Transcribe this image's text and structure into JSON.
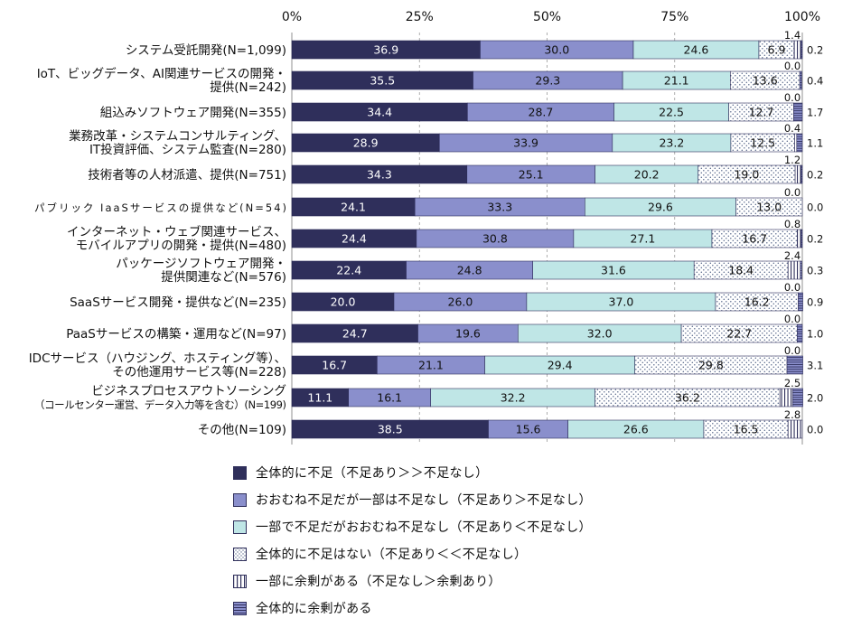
{
  "chart_data": {
    "type": "bar",
    "orientation": "horizontal",
    "stacked": true,
    "x_ticks": [
      "0%",
      "25%",
      "50%",
      "75%",
      "100%"
    ],
    "xlim": [
      0,
      100
    ],
    "grid": "vertical dashed",
    "legend_position": "bottom",
    "legend": [
      "全体的に不足（不足あり＞＞不足なし）",
      "おおむね不足だが一部は不足なし（不足あり＞不足なし）",
      "一部で不足だがおおむね不足なし（不足あり＜不足なし）",
      "全体的に不足はない（不足あり＜＜不足なし）",
      "一部に余剰がある（不足なし＞余剰あり）",
      "全体的に余剰がある"
    ],
    "categories": [
      [
        "システム受託開発(N=1,099)"
      ],
      [
        "IoT、ビッグデータ、AI関連サービスの開発・",
        "提供(N=242)"
      ],
      [
        "組込みソフトウェア開発(N=355)"
      ],
      [
        "業務改革・システムコンサルティング、",
        "IT投資評価、システム監査(N=280)"
      ],
      [
        "技術者等の人材派遣、提供(N=751)"
      ],
      [
        "パブリック IaaSサービスの提供など(N=54)"
      ],
      [
        "インターネット・ウェブ関連サービス、",
        "モバイルアプリの開発・提供(N=480)"
      ],
      [
        "パッケージソフトウェア開発・",
        "提供関連など(N=576)"
      ],
      [
        "SaaSサービス開発・提供など(N=235)"
      ],
      [
        "PaaSサービスの構築・運用など(N=97)"
      ],
      [
        "IDCサービス（ハウジング、ホスティング等）、",
        "その他運用サービス等(N=228)"
      ],
      [
        "ビジネスプロセスアウトソーシング",
        "（コールセンター運営、データ入力等を含む）(N=199)"
      ],
      [
        "その他(N=109)"
      ]
    ],
    "values": [
      [
        36.9,
        30.0,
        24.6,
        6.9,
        1.4,
        0.2
      ],
      [
        35.5,
        29.3,
        21.1,
        13.6,
        0.0,
        0.4
      ],
      [
        34.4,
        28.7,
        22.5,
        12.7,
        0.0,
        1.7
      ],
      [
        28.9,
        33.9,
        23.2,
        12.5,
        0.4,
        1.1
      ],
      [
        34.3,
        25.1,
        20.2,
        19.0,
        1.2,
        0.2
      ],
      [
        24.1,
        33.3,
        29.6,
        13.0,
        0.0,
        0.0
      ],
      [
        24.4,
        30.8,
        27.1,
        16.7,
        0.8,
        0.2
      ],
      [
        22.4,
        24.8,
        31.6,
        18.4,
        2.4,
        0.3
      ],
      [
        20.0,
        26.0,
        37.0,
        16.2,
        0.0,
        0.9
      ],
      [
        24.7,
        19.6,
        32.0,
        22.7,
        0.0,
        1.0
      ],
      [
        16.7,
        21.1,
        29.4,
        29.8,
        0.0,
        3.1
      ],
      [
        11.1,
        16.1,
        32.2,
        36.2,
        2.5,
        2.0
      ],
      [
        38.5,
        15.6,
        26.6,
        16.5,
        2.8,
        0.0
      ]
    ],
    "colors": [
      "#2f2f5b",
      "#8a8fcc",
      "#bfe6e6",
      "#ffffff",
      "#ffffff",
      "#8a8fcc"
    ],
    "patterns": [
      "solid",
      "solid",
      "solid",
      "dots",
      "vlines",
      "hlines"
    ],
    "value_text_colors": [
      "#ffffff",
      "#111111",
      "#111111",
      "#111111"
    ]
  }
}
